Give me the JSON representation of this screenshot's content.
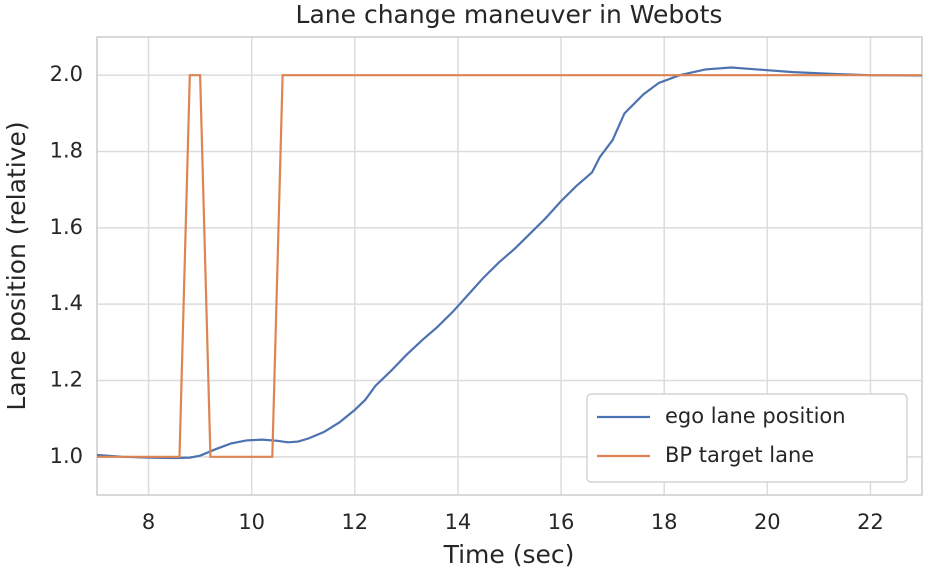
{
  "chart_data": {
    "type": "line",
    "title": "Lane change maneuver in Webots",
    "x_label": "Time (sec)",
    "y_label": "Lane position (relative)",
    "xlim": [
      7,
      23
    ],
    "ylim": [
      0.9,
      2.1
    ],
    "xticks": [
      8,
      10,
      12,
      14,
      16,
      18,
      20,
      22
    ],
    "yticks": [
      {
        "value": 1.0,
        "label": "1.0"
      },
      1.2,
      1.4,
      1.6,
      1.8,
      {
        "value": 2.0,
        "label": "2.0"
      }
    ],
    "grid": true,
    "legend": "lower right",
    "series": [
      {
        "name": "ego lane position",
        "color": "#4c72b0",
        "x": [
          7.0,
          7.5,
          8.0,
          8.5,
          8.8,
          9.0,
          9.3,
          9.6,
          9.9,
          10.2,
          10.5,
          10.7,
          10.9,
          11.1,
          11.4,
          11.7,
          12.0,
          12.2,
          12.4,
          12.7,
          13.0,
          13.3,
          13.6,
          13.9,
          14.2,
          14.5,
          14.8,
          15.1,
          15.4,
          15.7,
          16.0,
          16.3,
          16.6,
          16.75,
          17.0,
          17.23,
          17.6,
          17.9,
          18.3,
          18.8,
          19.3,
          19.8,
          20.5,
          21.3,
          22.0,
          23.0
        ],
        "values": [
          1.005,
          1.0,
          0.998,
          0.997,
          0.998,
          1.003,
          1.02,
          1.035,
          1.043,
          1.045,
          1.042,
          1.038,
          1.04,
          1.048,
          1.065,
          1.09,
          1.123,
          1.149,
          1.186,
          1.225,
          1.267,
          1.305,
          1.34,
          1.38,
          1.425,
          1.47,
          1.51,
          1.545,
          1.585,
          1.625,
          1.67,
          1.71,
          1.745,
          1.785,
          1.83,
          1.9,
          1.95,
          1.98,
          2.0,
          2.015,
          2.02,
          2.015,
          2.008,
          2.003,
          2.0,
          1.999
        ]
      },
      {
        "name": "BP target lane",
        "color": "#dd8452",
        "x": [
          7.0,
          8.6,
          8.8,
          9.0,
          9.2,
          10.4,
          10.6,
          23.0
        ],
        "values": [
          1.0,
          1.0,
          2.0,
          2.0,
          1.0,
          1.0,
          2.0,
          2.0
        ]
      }
    ]
  }
}
